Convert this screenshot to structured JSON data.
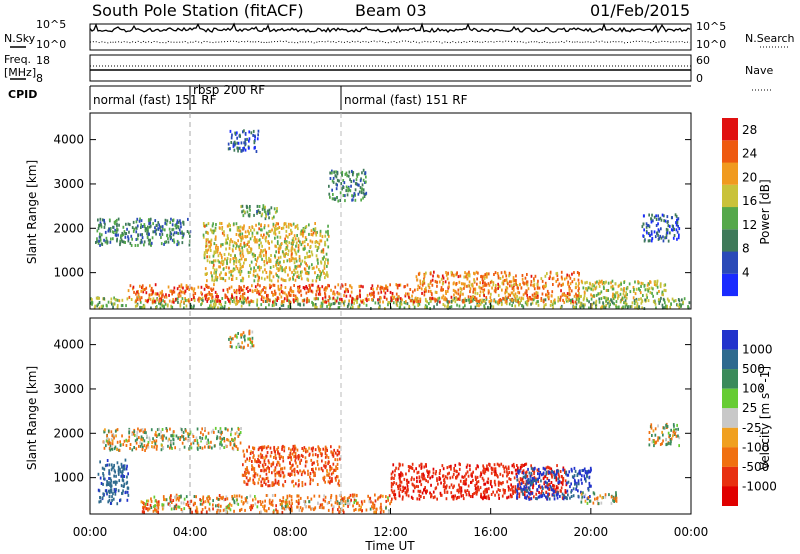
{
  "header": {
    "station": "South Pole Station (fitACF)",
    "beam": "Beam 03",
    "date": "01/Feb/2015"
  },
  "strips": {
    "nsky": {
      "label": "N.Sky",
      "ticks": [
        "10^5",
        "10^0"
      ]
    },
    "nsearch": {
      "label": "N.Search",
      "ticks": [
        "10^5",
        "10^0"
      ]
    },
    "freq": {
      "label": "Freq.",
      "unit": "[MHz]",
      "ticks": [
        "18",
        "8"
      ]
    },
    "nave": {
      "label": "Nave",
      "ticks": [
        "60",
        "0"
      ]
    }
  },
  "cpid": {
    "label": "CPID",
    "segments": [
      "normal (fast) 151 RF",
      "rbsp 200 RF",
      "normal (fast) 151 RF"
    ],
    "change_times_ut": [
      4.0,
      10.0
    ]
  },
  "chart_data": [
    {
      "type": "heatmap",
      "title": "",
      "xlabel": "Time UT",
      "ylabel": "Slant Range [km]",
      "colorbar_label": "Power [dB]",
      "x_ticks": [
        "00:00",
        "04:00",
        "08:00",
        "12:00",
        "16:00",
        "20:00",
        "00:00"
      ],
      "xlim_hours": [
        0,
        24
      ],
      "y_ticks": [
        1000,
        2000,
        3000,
        4000
      ],
      "ylim_km": [
        180,
        4600
      ],
      "colorbar_ticks": [
        4,
        8,
        12,
        16,
        20,
        24,
        28
      ],
      "colorbar_range": [
        0,
        30
      ],
      "colorbar_colors": [
        "#1a2bff",
        "#2a4ab8",
        "#3f7a5a",
        "#55a84a",
        "#c9c23a",
        "#f09a1f",
        "#ee5a10",
        "#e01010"
      ],
      "regions": [
        {
          "t": [
            0.0,
            24.0
          ],
          "r": [
            180,
            420
          ],
          "value": 14
        },
        {
          "t": [
            1.5,
            13.0
          ],
          "r": [
            320,
            720
          ],
          "value": 24
        },
        {
          "t": [
            13.0,
            19.5
          ],
          "r": [
            320,
            1000
          ],
          "value": 22
        },
        {
          "t": [
            19.5,
            23.0
          ],
          "r": [
            400,
            800
          ],
          "value": 16
        },
        {
          "t": [
            4.5,
            9.5
          ],
          "r": [
            800,
            2100
          ],
          "value": 18
        },
        {
          "t": [
            0.2,
            4.0
          ],
          "r": [
            1600,
            2200
          ],
          "value": 10
        },
        {
          "t": [
            6.0,
            7.5
          ],
          "r": [
            2200,
            2500
          ],
          "value": 12
        },
        {
          "t": [
            9.5,
            11.0
          ],
          "r": [
            2600,
            3300
          ],
          "value": 10
        },
        {
          "t": [
            5.5,
            6.7
          ],
          "r": [
            3700,
            4200
          ],
          "value": 6
        },
        {
          "t": [
            22.0,
            23.5
          ],
          "r": [
            1700,
            2300
          ],
          "value": 6
        }
      ]
    },
    {
      "type": "heatmap",
      "title": "",
      "xlabel": "Time UT",
      "ylabel": "Slant Range [km]",
      "colorbar_label": "Velocity [m s^-1]",
      "x_ticks": [
        "00:00",
        "04:00",
        "08:00",
        "12:00",
        "16:00",
        "20:00",
        "00:00"
      ],
      "xlim_hours": [
        0,
        24
      ],
      "y_ticks": [
        1000,
        2000,
        3000,
        4000
      ],
      "ylim_km": [
        180,
        4600
      ],
      "colorbar_ticks": [
        "1000",
        "500",
        "100",
        "25",
        "-25",
        "-100",
        "-500",
        "-1000"
      ],
      "colorbar_colors": [
        "#2233cc",
        "#2e6a8e",
        "#3a8a5a",
        "#66cc33",
        "#c8c8c8",
        "#f0a020",
        "#f07010",
        "#e83010",
        "#e00000"
      ],
      "regions": [
        {
          "t": [
            2.0,
            12.0
          ],
          "r": [
            200,
            600
          ],
          "value": -150
        },
        {
          "t": [
            12.0,
            19.0
          ],
          "r": [
            500,
            1300
          ],
          "value": -600
        },
        {
          "t": [
            6.0,
            10.0
          ],
          "r": [
            800,
            1700
          ],
          "value": -300
        },
        {
          "t": [
            0.5,
            6.0
          ],
          "r": [
            1600,
            2100
          ],
          "value": 0
        },
        {
          "t": [
            17.0,
            20.0
          ],
          "r": [
            500,
            1200
          ],
          "value": 800
        },
        {
          "t": [
            19.5,
            21.0
          ],
          "r": [
            400,
            650
          ],
          "value": 0
        },
        {
          "t": [
            5.5,
            6.5
          ],
          "r": [
            3900,
            4300
          ],
          "value": 0
        },
        {
          "t": [
            0.3,
            1.5
          ],
          "r": [
            400,
            1400
          ],
          "value": 600
        },
        {
          "t": [
            22.3,
            23.5
          ],
          "r": [
            1700,
            2200
          ],
          "value": 0
        }
      ]
    }
  ]
}
